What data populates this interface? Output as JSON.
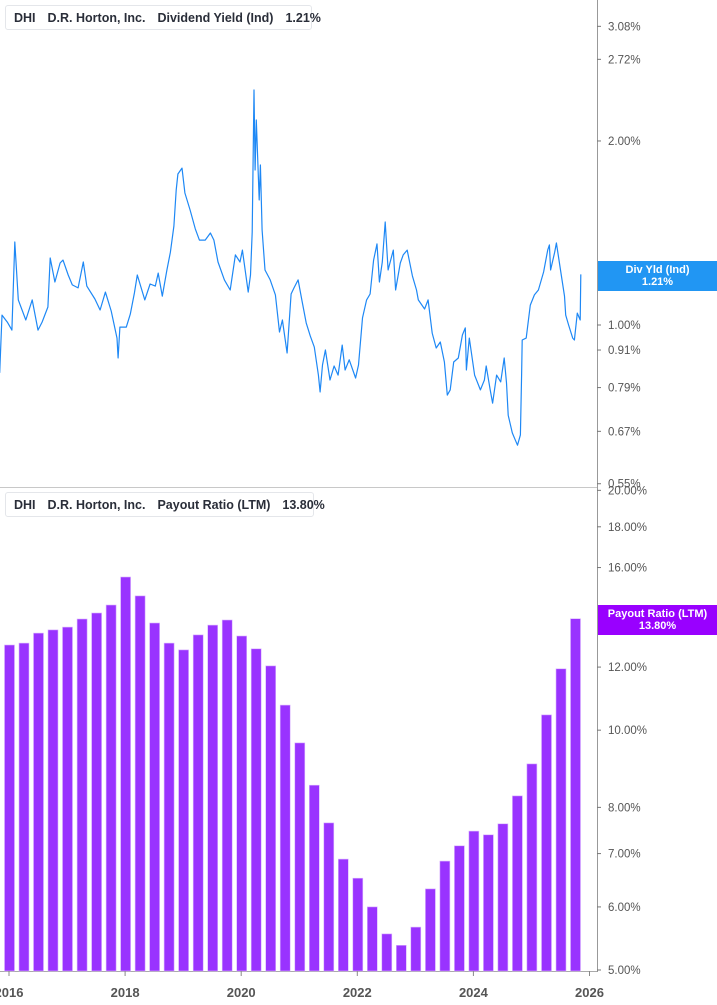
{
  "chart_data": [
    {
      "type": "line",
      "legend": {
        "ticker": "DHI",
        "company": "D.R. Horton, Inc.",
        "metric": "Dividend Yield (Ind)",
        "value": "1.21%"
      },
      "last_value_tag": {
        "label": "Div Yld (Ind)",
        "value": "1.21%"
      },
      "color": "#1e88f5",
      "y_scale": "log",
      "ylim": [
        0.55,
        3.2
      ],
      "y_ticks": [
        "3.08%",
        "2.72%",
        "2.00%",
        "1.00%",
        "0.91%",
        "0.79%",
        "0.67%",
        "0.55%"
      ],
      "y_tick_values": [
        3.08,
        2.72,
        2.0,
        1.0,
        0.91,
        0.79,
        0.67,
        0.55
      ],
      "xlim": [
        2015.84,
        2025.94
      ],
      "series": [
        [
          2015.84,
          0.835
        ],
        [
          2015.88,
          1.038
        ],
        [
          2015.97,
          1.011
        ],
        [
          2016.05,
          0.981
        ],
        [
          2016.1,
          1.367
        ],
        [
          2016.16,
          1.099
        ],
        [
          2016.29,
          1.019
        ],
        [
          2016.4,
          1.099
        ],
        [
          2016.5,
          0.981
        ],
        [
          2016.57,
          1.011
        ],
        [
          2016.67,
          1.07
        ],
        [
          2016.71,
          1.287
        ],
        [
          2016.79,
          1.176
        ],
        [
          2016.88,
          1.263
        ],
        [
          2016.93,
          1.277
        ],
        [
          2017.02,
          1.207
        ],
        [
          2017.09,
          1.163
        ],
        [
          2017.19,
          1.15
        ],
        [
          2017.28,
          1.268
        ],
        [
          2017.34,
          1.158
        ],
        [
          2017.48,
          1.103
        ],
        [
          2017.57,
          1.058
        ],
        [
          2017.66,
          1.132
        ],
        [
          2017.76,
          1.054
        ],
        [
          2017.86,
          0.952
        ],
        [
          2017.88,
          0.883
        ],
        [
          2017.91,
          0.992
        ],
        [
          2018.02,
          0.992
        ],
        [
          2018.09,
          1.042
        ],
        [
          2018.16,
          1.128
        ],
        [
          2018.21,
          1.207
        ],
        [
          2018.34,
          1.099
        ],
        [
          2018.43,
          1.167
        ],
        [
          2018.52,
          1.158
        ],
        [
          2018.57,
          1.216
        ],
        [
          2018.64,
          1.115
        ],
        [
          2018.72,
          1.23
        ],
        [
          2018.78,
          1.316
        ],
        [
          2018.84,
          1.452
        ],
        [
          2018.88,
          1.663
        ],
        [
          2018.91,
          1.766
        ],
        [
          2018.98,
          1.806
        ],
        [
          2019.03,
          1.644
        ],
        [
          2019.12,
          1.542
        ],
        [
          2019.21,
          1.436
        ],
        [
          2019.28,
          1.377
        ],
        [
          2019.38,
          1.377
        ],
        [
          2019.47,
          1.414
        ],
        [
          2019.53,
          1.377
        ],
        [
          2019.6,
          1.268
        ],
        [
          2019.71,
          1.185
        ],
        [
          2019.81,
          1.141
        ],
        [
          2019.9,
          1.302
        ],
        [
          2019.98,
          1.268
        ],
        [
          2020.02,
          1.326
        ],
        [
          2020.12,
          1.132
        ],
        [
          2020.16,
          1.207
        ],
        [
          2020.19,
          1.419
        ],
        [
          2020.22,
          2.423
        ],
        [
          2020.24,
          1.793
        ],
        [
          2020.26,
          2.164
        ],
        [
          2020.31,
          1.601
        ],
        [
          2020.33,
          1.827
        ],
        [
          2020.36,
          1.43
        ],
        [
          2020.41,
          1.23
        ],
        [
          2020.5,
          1.185
        ],
        [
          2020.59,
          1.12
        ],
        [
          2020.66,
          0.974
        ],
        [
          2020.71,
          1.019
        ],
        [
          2020.79,
          0.9
        ],
        [
          2020.86,
          1.124
        ],
        [
          2020.91,
          1.15
        ],
        [
          2020.98,
          1.185
        ],
        [
          2021.05,
          1.091
        ],
        [
          2021.12,
          1.008
        ],
        [
          2021.19,
          0.959
        ],
        [
          2021.26,
          0.92
        ],
        [
          2021.33,
          0.828
        ],
        [
          2021.36,
          0.777
        ],
        [
          2021.4,
          0.86
        ],
        [
          2021.45,
          0.91
        ],
        [
          2021.53,
          0.813
        ],
        [
          2021.6,
          0.857
        ],
        [
          2021.67,
          0.828
        ],
        [
          2021.74,
          0.927
        ],
        [
          2021.79,
          0.844
        ],
        [
          2021.86,
          0.877
        ],
        [
          2021.97,
          0.819
        ],
        [
          2022.02,
          0.86
        ],
        [
          2022.09,
          1.027
        ],
        [
          2022.16,
          1.099
        ],
        [
          2022.22,
          1.124
        ],
        [
          2022.28,
          1.277
        ],
        [
          2022.34,
          1.357
        ],
        [
          2022.38,
          1.176
        ],
        [
          2022.43,
          1.268
        ],
        [
          2022.48,
          1.474
        ],
        [
          2022.53,
          1.23
        ],
        [
          2022.62,
          1.326
        ],
        [
          2022.66,
          1.141
        ],
        [
          2022.74,
          1.263
        ],
        [
          2022.79,
          1.302
        ],
        [
          2022.86,
          1.326
        ],
        [
          2022.95,
          1.203
        ],
        [
          2023.02,
          1.141
        ],
        [
          2023.05,
          1.099
        ],
        [
          2023.16,
          1.062
        ],
        [
          2023.22,
          1.099
        ],
        [
          2023.29,
          0.97
        ],
        [
          2023.36,
          0.917
        ],
        [
          2023.43,
          0.938
        ],
        [
          2023.5,
          0.87
        ],
        [
          2023.55,
          0.768
        ],
        [
          2023.6,
          0.783
        ],
        [
          2023.66,
          0.87
        ],
        [
          2023.74,
          0.883
        ],
        [
          2023.81,
          0.963
        ],
        [
          2023.86,
          0.989
        ],
        [
          2023.88,
          0.844
        ],
        [
          2023.93,
          0.952
        ],
        [
          2024.02,
          0.828
        ],
        [
          2024.12,
          0.783
        ],
        [
          2024.19,
          0.813
        ],
        [
          2024.22,
          0.857
        ],
        [
          2024.29,
          0.783
        ],
        [
          2024.33,
          0.745
        ],
        [
          2024.4,
          0.828
        ],
        [
          2024.47,
          0.807
        ],
        [
          2024.53,
          0.883
        ],
        [
          2024.57,
          0.804
        ],
        [
          2024.6,
          0.712
        ],
        [
          2024.67,
          0.666
        ],
        [
          2024.72,
          0.649
        ],
        [
          2024.76,
          0.636
        ],
        [
          2024.81,
          0.661
        ],
        [
          2024.83,
          0.828
        ],
        [
          2024.84,
          0.945
        ],
        [
          2024.91,
          0.952
        ],
        [
          2024.98,
          1.078
        ],
        [
          2025.05,
          1.12
        ],
        [
          2025.12,
          1.141
        ],
        [
          2025.21,
          1.221
        ],
        [
          2025.28,
          1.326
        ],
        [
          2025.31,
          1.352
        ],
        [
          2025.33,
          1.23
        ],
        [
          2025.4,
          1.316
        ],
        [
          2025.43,
          1.362
        ],
        [
          2025.5,
          1.23
        ],
        [
          2025.57,
          1.115
        ],
        [
          2025.59,
          1.038
        ],
        [
          2025.64,
          1.0
        ],
        [
          2025.71,
          0.952
        ],
        [
          2025.74,
          0.945
        ],
        [
          2025.79,
          1.046
        ],
        [
          2025.84,
          1.019
        ],
        [
          2025.85,
          1.21
        ]
      ]
    },
    {
      "type": "bar",
      "legend": {
        "ticker": "DHI",
        "company": "D.R. Horton, Inc.",
        "metric": "Payout Ratio (LTM)",
        "value": "13.80%"
      },
      "last_value_tag": {
        "label": "Payout Ratio (LTM)",
        "value": "13.80%"
      },
      "color": "#9933ff",
      "y_scale": "log",
      "ylim": [
        5,
        20
      ],
      "y_ticks": [
        "20.00%",
        "18.00%",
        "16.00%",
        "12.00%",
        "10.00%",
        "8.00%",
        "7.00%",
        "6.00%",
        "5.00%"
      ],
      "y_tick_values": [
        20,
        18,
        16,
        12,
        10,
        8,
        7,
        6,
        5
      ],
      "x": [
        2016.0,
        2016.25,
        2016.5,
        2016.75,
        2017.0,
        2017.25,
        2017.5,
        2017.75,
        2018.0,
        2018.25,
        2018.5,
        2018.75,
        2019.0,
        2019.25,
        2019.5,
        2019.75,
        2020.0,
        2020.25,
        2020.5,
        2020.75,
        2021.0,
        2021.25,
        2021.5,
        2021.75,
        2022.0,
        2022.25,
        2022.5,
        2022.75,
        2023.0,
        2023.25,
        2023.5,
        2023.75,
        2024.0,
        2024.25,
        2024.5,
        2024.75,
        2025.0,
        2025.25,
        2025.5,
        2025.75
      ],
      "values": [
        12.79,
        12.86,
        13.24,
        13.36,
        13.47,
        13.79,
        14.03,
        14.36,
        15.57,
        14.74,
        13.63,
        12.86,
        12.61,
        13.17,
        13.55,
        13.75,
        13.13,
        12.65,
        12.04,
        10.75,
        9.64,
        8.53,
        7.65,
        6.89,
        6.52,
        6.0,
        5.55,
        5.37,
        5.66,
        6.32,
        6.85,
        7.16,
        7.47,
        7.39,
        7.63,
        8.27,
        9.07,
        10.45,
        11.94,
        13.8
      ]
    }
  ],
  "x_axis": {
    "ticks": [
      "2016",
      "2018",
      "2020",
      "2022",
      "2024",
      "2026"
    ],
    "tick_values": [
      2016,
      2018,
      2020,
      2022,
      2024,
      2026
    ]
  }
}
